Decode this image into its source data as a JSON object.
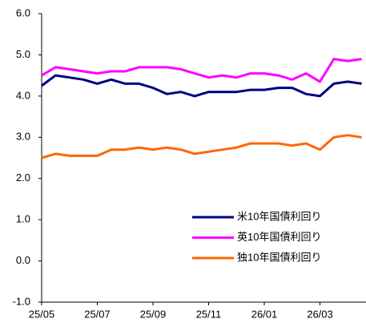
{
  "chart_data": {
    "type": "line",
    "categories": [
      "25/05",
      null,
      null,
      null,
      "25/07",
      null,
      null,
      null,
      "25/09",
      null,
      null,
      null,
      "25/11",
      null,
      null,
      null,
      "26/01",
      null,
      null,
      null,
      "26/03",
      null,
      null,
      null
    ],
    "series": [
      {
        "name": "米10年国債利回り",
        "color": "#000080",
        "values": [
          4.25,
          4.5,
          4.45,
          4.4,
          4.3,
          4.4,
          4.3,
          4.3,
          4.2,
          4.05,
          4.1,
          4.0,
          4.1,
          4.1,
          4.1,
          4.15,
          4.15,
          4.2,
          4.2,
          4.05,
          4.0,
          4.3,
          4.35,
          4.3
        ]
      },
      {
        "name": "英10年国債利回り",
        "color": "#ff00ff",
        "values": [
          4.5,
          4.7,
          4.65,
          4.6,
          4.55,
          4.6,
          4.6,
          4.7,
          4.7,
          4.7,
          4.65,
          4.55,
          4.45,
          4.5,
          4.45,
          4.55,
          4.55,
          4.5,
          4.4,
          4.55,
          4.35,
          4.9,
          4.85,
          4.9
        ]
      },
      {
        "name": "独10年国債利回り",
        "color": "#ff6600",
        "values": [
          2.5,
          2.6,
          2.55,
          2.55,
          2.55,
          2.7,
          2.7,
          2.75,
          2.7,
          2.75,
          2.7,
          2.6,
          2.65,
          2.7,
          2.75,
          2.85,
          2.85,
          2.85,
          2.8,
          2.85,
          2.7,
          3.0,
          3.05,
          3.0
        ]
      }
    ],
    "ylim": [
      -1,
      6
    ],
    "yticks": [
      {
        "value": -1,
        "label": "-1.0"
      },
      {
        "value": 0,
        "label": "0.0"
      },
      {
        "value": 1,
        "label": "1.0"
      },
      {
        "value": 2,
        "label": "2.0"
      },
      {
        "value": 3,
        "label": "3.0"
      },
      {
        "value": 4,
        "label": "4.0"
      },
      {
        "value": 5,
        "label": "5.0"
      },
      {
        "value": 6,
        "label": "6.0"
      }
    ],
    "grid": false,
    "legend": "lower right"
  }
}
